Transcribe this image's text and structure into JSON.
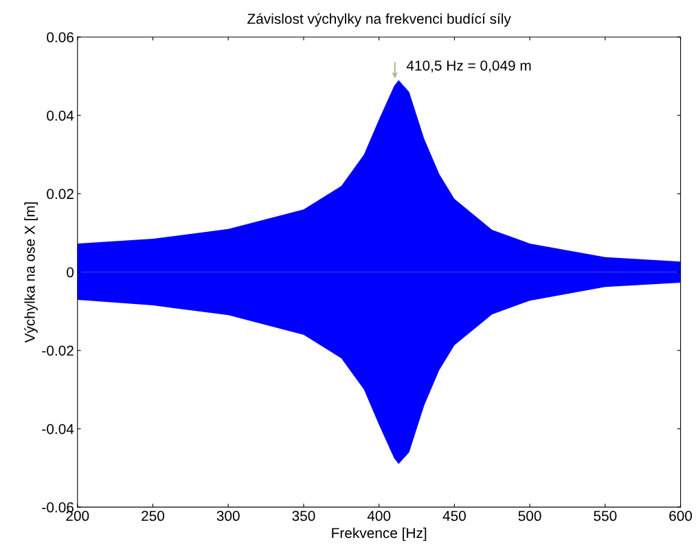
{
  "chart_data": {
    "type": "area",
    "title": "Závislost výchylky na frekvenci budící síly",
    "xlabel": "Frekvence [Hz]",
    "ylabel": "Výchylka na ose X [m]",
    "x": [
      200,
      250,
      300,
      350,
      375,
      390,
      400,
      410,
      413,
      420,
      430,
      440,
      450,
      475,
      500,
      550,
      600
    ],
    "series": [
      {
        "color": "#0000ff",
        "values": [
          0.0073,
          0.0085,
          0.011,
          0.016,
          0.022,
          0.03,
          0.039,
          0.0475,
          0.049,
          0.046,
          0.034,
          0.025,
          0.0187,
          0.0108,
          0.0073,
          0.0038,
          0.0027
        ]
      },
      {
        "color": "#0000ff",
        "values": [
          -0.0071,
          -0.0085,
          -0.011,
          -0.016,
          -0.022,
          -0.03,
          -0.039,
          -0.0475,
          -0.049,
          -0.046,
          -0.034,
          -0.025,
          -0.0187,
          -0.0108,
          -0.0073,
          -0.0038,
          -0.0027
        ]
      }
    ],
    "annotations": [
      {
        "text": "410,5 Hz = 0,049 m",
        "x": 410.5,
        "y": 0.049
      }
    ],
    "xlim": [
      200,
      600
    ],
    "xticks": [
      200,
      250,
      300,
      350,
      400,
      450,
      500,
      550,
      600
    ],
    "ylim": [
      -0.06,
      0.06
    ],
    "yticks": [
      -0.06,
      -0.04,
      -0.02,
      0,
      0.02,
      0.04,
      0.06
    ],
    "grid": false,
    "legend": false
  }
}
